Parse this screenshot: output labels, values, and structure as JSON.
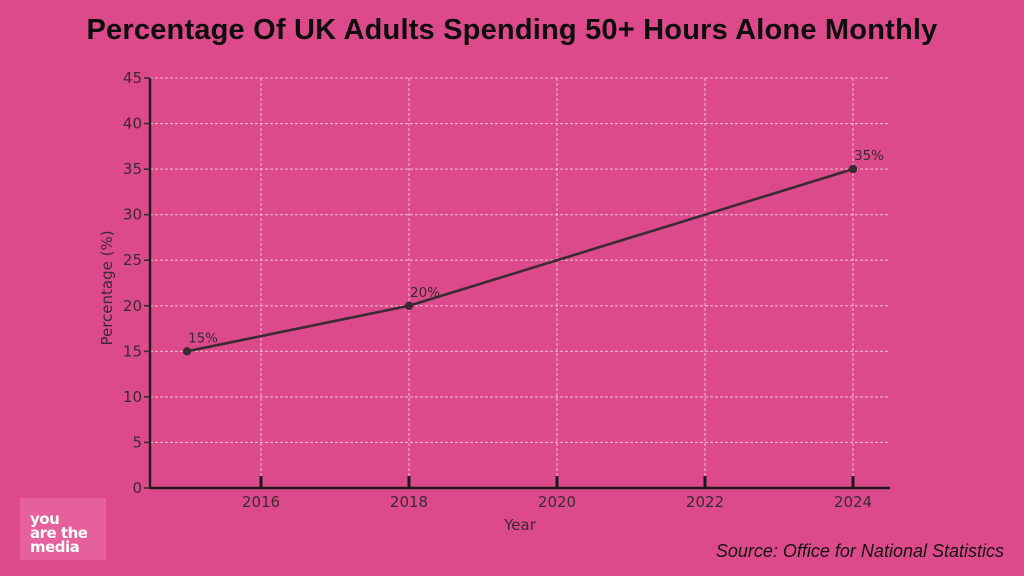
{
  "chart_data": {
    "type": "line",
    "title": "Percentage Of UK Adults Spending 50+ Hours Alone Monthly",
    "xlabel": "Year",
    "ylabel": "Percentage (%)",
    "xlim": [
      2014.5,
      2024.5
    ],
    "ylim": [
      0,
      45
    ],
    "x_ticks": [
      2016,
      2018,
      2020,
      2022,
      2024
    ],
    "y_ticks": [
      0,
      5,
      10,
      15,
      20,
      25,
      30,
      35,
      40,
      45
    ],
    "grid": true,
    "series": [
      {
        "x": [
          2015,
          2018,
          2024
        ],
        "values": [
          15,
          20,
          35
        ]
      }
    ],
    "annotations": [
      {
        "x": 2015,
        "y": 15,
        "text": "15%"
      },
      {
        "x": 2018,
        "y": 20,
        "text": "20%"
      },
      {
        "x": 2024,
        "y": 35,
        "text": "35%"
      }
    ],
    "colors": {
      "background": "#dd4a8c",
      "line": "#3a2a33",
      "grid": "#f4c6dc"
    }
  },
  "source": "Source: Office for National Statistics",
  "logo": {
    "lines": [
      "you",
      "are the",
      "media"
    ]
  }
}
